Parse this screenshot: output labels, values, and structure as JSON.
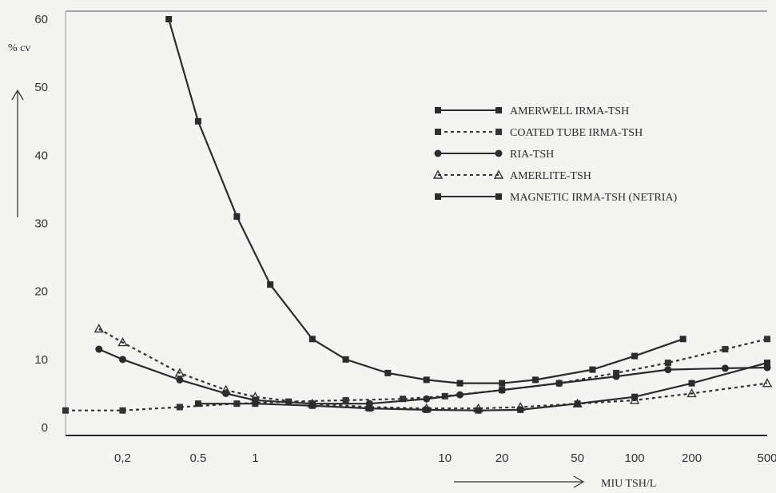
{
  "chart_data": {
    "type": "line",
    "title": "",
    "ylabel": "% cv",
    "xlabel": "MIU TSH/L",
    "x_scale": "log",
    "xlim": [
      0.1,
      500
    ],
    "ylim": [
      0,
      60
    ],
    "y_ticks": [
      0,
      10,
      20,
      30,
      40,
      50,
      60
    ],
    "x_ticks": [
      0.2,
      0.5,
      1,
      10,
      20,
      50,
      100,
      200,
      500
    ],
    "x_tick_labels": [
      "0,2",
      "0.5",
      "1",
      "10",
      "20",
      "50",
      "100",
      "200",
      "500"
    ],
    "grid": false,
    "legend_position": "right",
    "series": [
      {
        "name": "AMERWELL IRMA-TSH",
        "style": "solid",
        "marker": "square",
        "color": "#2b2b2b",
        "points": [
          [
            0.35,
            60
          ],
          [
            0.5,
            45
          ],
          [
            0.8,
            31
          ],
          [
            1.2,
            21
          ],
          [
            2,
            13
          ],
          [
            3,
            10
          ],
          [
            5,
            8
          ],
          [
            8,
            7
          ],
          [
            12,
            6.5
          ],
          [
            20,
            6.5
          ],
          [
            30,
            7
          ],
          [
            60,
            8.5
          ],
          [
            100,
            10.5
          ],
          [
            180,
            13
          ]
        ]
      },
      {
        "name": "COATED TUBE IRMA-TSH",
        "style": "dotted",
        "marker": "square",
        "color": "#333333",
        "points": [
          [
            0.1,
            2.5
          ],
          [
            0.2,
            2.5
          ],
          [
            0.4,
            3
          ],
          [
            0.8,
            3.5
          ],
          [
            1.5,
            3.8
          ],
          [
            3,
            4
          ],
          [
            6,
            4.2
          ],
          [
            10,
            4.6
          ],
          [
            20,
            5.5
          ],
          [
            40,
            6.5
          ],
          [
            80,
            8
          ],
          [
            150,
            9.5
          ],
          [
            300,
            11.5
          ],
          [
            500,
            13
          ]
        ]
      },
      {
        "name": "RIA-TSH",
        "style": "solid",
        "marker": "circle",
        "color": "#2b2b2b",
        "points": [
          [
            0.15,
            11.5
          ],
          [
            0.2,
            10
          ],
          [
            0.4,
            7
          ],
          [
            0.7,
            5
          ],
          [
            1,
            4
          ],
          [
            2,
            3.5
          ],
          [
            4,
            3.5
          ],
          [
            8,
            4.2
          ],
          [
            12,
            4.8
          ],
          [
            20,
            5.5
          ],
          [
            40,
            6.5
          ],
          [
            80,
            7.5
          ],
          [
            150,
            8.5
          ],
          [
            300,
            8.7
          ],
          [
            500,
            8.8
          ]
        ]
      },
      {
        "name": "AMERLITE-TSH",
        "style": "dotted",
        "marker": "triangle",
        "color": "#333333",
        "points": [
          [
            0.15,
            14.5
          ],
          [
            0.2,
            12.5
          ],
          [
            0.4,
            8
          ],
          [
            0.7,
            5.5
          ],
          [
            1,
            4.5
          ],
          [
            2,
            3.5
          ],
          [
            4,
            3
          ],
          [
            8,
            2.8
          ],
          [
            15,
            2.8
          ],
          [
            25,
            3
          ],
          [
            50,
            3.5
          ],
          [
            100,
            4
          ],
          [
            200,
            5
          ],
          [
            500,
            6.5
          ]
        ]
      },
      {
        "name": "MAGNETIC IRMA-TSH (NETRIA)",
        "style": "solid",
        "marker": "square",
        "color": "#2b2b2b",
        "points": [
          [
            0.5,
            3.5
          ],
          [
            1,
            3.5
          ],
          [
            2,
            3.2
          ],
          [
            4,
            2.8
          ],
          [
            8,
            2.6
          ],
          [
            15,
            2.5
          ],
          [
            25,
            2.6
          ],
          [
            50,
            3.5
          ],
          [
            100,
            4.5
          ],
          [
            200,
            6.5
          ],
          [
            500,
            9.5
          ]
        ]
      }
    ]
  }
}
